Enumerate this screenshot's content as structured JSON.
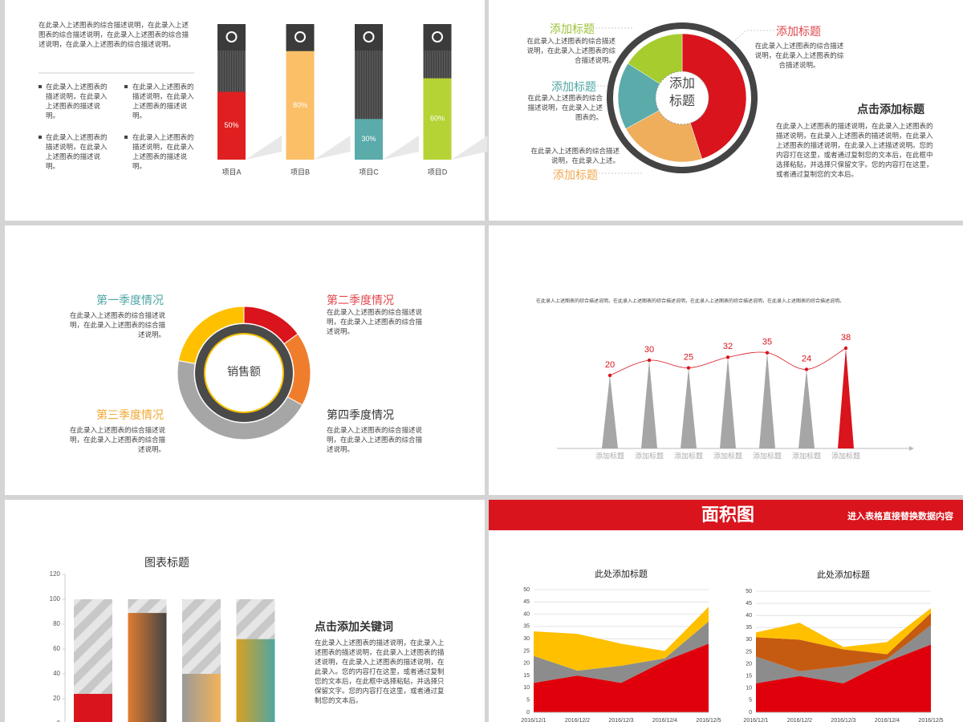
{
  "chart_data": [
    {
      "type": "progress",
      "intro": "在此录入上述图表的综合描述说明，在此录入上述图表的综合描述说明，在此录入上述图表的综合描述说明，在此录入上述图表的综合描述说明。",
      "bullets": [
        "在此录入上述图表的描述说明，在此录入上述图表的描述说明。",
        "在此录入上述图表的描述说明，在此录入上述图表的描述说明。",
        "在此录入上述图表的描述说明，在此录入上述图表的描述说明。",
        "在此录入上述图表的描述说明，在此录入上述图表的描述说明。"
      ],
      "categories": [
        "项目A",
        "项目B",
        "项目C",
        "项目D"
      ],
      "values": [
        50,
        80,
        30,
        60
      ],
      "value_labels": [
        "50%",
        "80%",
        "30%",
        "60%"
      ],
      "colors": [
        "#e02020",
        "#fbbf67",
        "#5aabaa",
        "#b5d334"
      ],
      "ylim": [
        0,
        100
      ]
    },
    {
      "type": "pie",
      "values": [
        45,
        22,
        17,
        16
      ],
      "colors": [
        "#d9141c",
        "#eeae5c",
        "#5aabaa",
        "#a6cc2e"
      ],
      "center": "添加标题",
      "labels": [
        "添加标题",
        "添加标题",
        "添加标题",
        "添加标题"
      ],
      "label_texts": [
        "在此录入上述图表的综合描述说明，在此录入上述图表的综合描述说明。",
        "在此录入上述图表的综合描述说明，在此录入上述。",
        "在此录入上述图表的综合描述说明，在此录入上述图表的。",
        "在此录入上述图表的综合描述说明，在此录入上述图表的综合描述说明。"
      ],
      "title": "点击添加标题",
      "text": "在此录入上述图表的描述说明，在此录入上述图表的描述说明，在此录入上述图表的描述说明，在此录入上述图表的描述说明，在此录入上述描述说明。您的内容打在这里，或者通过复制您的文本后，在此框中选择粘贴，并选择只保留文字。您的内容打在这里，或者通过复制您的文本后。"
    },
    {
      "type": "donut",
      "values": [
        15,
        18,
        45,
        22
      ],
      "colors": [
        "#d9141c",
        "#ef7d2c",
        "#a6a6a6",
        "#ffc000"
      ],
      "center": "销售额",
      "labels": [
        "第一季度情况",
        "第二季度情况",
        "第三季度情况",
        "第四季度情况"
      ],
      "label_texts": [
        "在此录入上述图表的综合描述说明，在此录入上述图表的综合描述说明。",
        "在此录入上述图表的综合描述说明，在此录入上述图表的综合描述说明。",
        "在此录入上述图表的综合描述说明，在此录入上述图表的综合描述说明。",
        "在此录入上述图表的综合描述说明，在此录入上述图表的综合描述说明。"
      ]
    },
    {
      "type": "triangle",
      "subtitle": "在此录入上述图表的综合描述说明，在此录入上述图表的综合描述说明，在此录入上述图表的综合描述说明，在此录入上述图表的综合描述说明。",
      "categories": [
        "添加标题",
        "添加标题",
        "添加标题",
        "添加标题",
        "添加标题",
        "添加标题",
        "添加标题"
      ],
      "values": [
        20,
        30,
        25,
        32,
        35,
        24,
        38
      ],
      "colors": [
        "#a6a6a6",
        "#a6a6a6",
        "#a6a6a6",
        "#a6a6a6",
        "#a6a6a6",
        "#a6a6a6",
        "#d9141c"
      ],
      "line_color": "#d9141c"
    },
    {
      "type": "stacked_bar",
      "title": "图表标题",
      "ylim": [
        0,
        120
      ],
      "yticks": [
        0,
        20,
        40,
        60,
        80,
        100,
        120
      ],
      "series": [
        {
          "values": [
            24,
            89,
            40,
            68
          ],
          "gradients": [
            [
              "#d9141c",
              "#d9141c"
            ],
            [
              "#e07b30",
              "#444444"
            ],
            [
              "#9a9a9a",
              "#f2b35a"
            ],
            [
              "#d9a020",
              "#4ea6a4"
            ]
          ]
        },
        {
          "color": "#cccccc",
          "values": [
            76,
            11,
            60,
            32
          ]
        }
      ],
      "heading": "点击添加关键词",
      "text": "在此录入上述图表的描述说明，在此录入上述图表的描述说明，在此录入上述图表的描述说明，在此录入上述图表的描述说明，在此录入。您的内容打在这里，或者通过复制您的文本后，在此框中选择粘贴，并选择只保留文字。您的内容打在这里，或者通过复制您的文本后。"
    },
    {
      "type": "area",
      "title": "此处添加标题",
      "x": [
        "2016/12/1",
        "2016/12/2",
        "2016/12/3",
        "2016/12/4",
        "2016/12/5"
      ],
      "ylim": [
        0,
        50
      ],
      "yticks": [
        0,
        5,
        10,
        15,
        20,
        25,
        30,
        35,
        40,
        45,
        50
      ],
      "series": [
        {
          "color": "#e0000b",
          "values": [
            12,
            15,
            12,
            21,
            28
          ]
        },
        {
          "color": "#8c8c8c",
          "values": [
            11,
            2,
            7,
            1,
            9
          ]
        },
        {
          "color": "#ffc000",
          "values": [
            10,
            15,
            9,
            3,
            6
          ]
        }
      ]
    },
    {
      "type": "area",
      "title": "此处添加标题",
      "x": [
        "2016/12/1",
        "2016/12/2",
        "2016/12/3",
        "2016/12/4",
        "2016/12/5"
      ],
      "ylim": [
        0,
        50
      ],
      "yticks": [
        0,
        5,
        10,
        15,
        20,
        25,
        30,
        35,
        40,
        45,
        50
      ],
      "series": [
        {
          "color": "#e0000b",
          "values": [
            12,
            15,
            12,
            21,
            28
          ]
        },
        {
          "color": "#8c8c8c",
          "values": [
            11,
            2,
            7,
            1,
            8
          ]
        },
        {
          "color": "#c55a11",
          "values": [
            8,
            13,
            7,
            2,
            5
          ]
        },
        {
          "color": "#ffc000",
          "values": [
            2,
            7,
            1,
            5,
            2
          ]
        }
      ]
    }
  ],
  "header": {
    "title": "面积图",
    "subtitle": "进入表格直接替换数据内容"
  }
}
